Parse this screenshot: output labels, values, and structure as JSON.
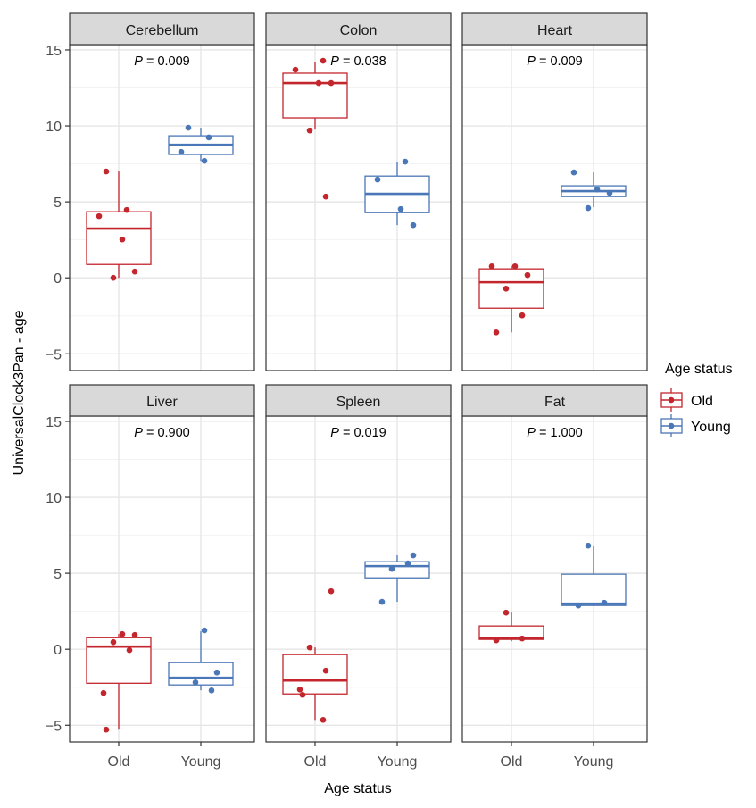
{
  "chart_data": {
    "type": "boxplot",
    "xlabel": "Age status",
    "ylabel": "UniversalClock3Pan - age",
    "ylim": [
      -6.1,
      15.35
    ],
    "y_ticks": [
      -5,
      0,
      5,
      10,
      15
    ],
    "categories": [
      "Old",
      "Young"
    ],
    "grid": true,
    "legend": {
      "title": "Age status",
      "position": "right",
      "entries": [
        "Old",
        "Young"
      ]
    },
    "colors": {
      "Old": "#c4262e",
      "Young": "#4a77b7"
    },
    "p_label": "P",
    "facets": [
      {
        "name": "Cerebellum",
        "p": "0.009",
        "Old": {
          "box": [
            0.0,
            0.88,
            3.24,
            4.35,
            7.0
          ],
          "points": [
            7.0,
            4.47,
            4.06,
            2.53,
            0.41,
            0.0
          ]
        },
        "Young": {
          "box": [
            7.7,
            8.12,
            8.76,
            9.35,
            9.88
          ],
          "points": [
            9.88,
            9.24,
            8.29,
            7.7
          ]
        }
      },
      {
        "name": "Colon",
        "p": "0.038",
        "Old": {
          "box": [
            9.76,
            10.53,
            12.82,
            13.47,
            14.18
          ],
          "points": [
            14.29,
            13.7,
            12.82,
            12.82,
            9.7,
            5.35
          ]
        },
        "Young": {
          "box": [
            3.47,
            4.29,
            5.53,
            6.7,
            7.65
          ],
          "points": [
            7.65,
            6.47,
            4.53,
            3.47
          ]
        }
      },
      {
        "name": "Heart",
        "p": "0.009",
        "Old": {
          "box": [
            -3.59,
            -2.0,
            -0.29,
            0.59,
            0.76
          ],
          "points": [
            0.76,
            0.76,
            0.18,
            -0.71,
            -2.47,
            -3.59
          ]
        },
        "Young": {
          "box": [
            4.65,
            5.35,
            5.71,
            6.06,
            6.94
          ],
          "points": [
            6.94,
            5.82,
            5.59,
            4.59
          ]
        }
      },
      {
        "name": "Liver",
        "p": "0.900",
        "Old": {
          "box": [
            -5.29,
            -2.24,
            0.18,
            0.76,
            1.0
          ],
          "points": [
            1.0,
            0.94,
            0.47,
            -0.06,
            -2.88,
            -5.29
          ]
        },
        "Young": {
          "box": [
            -2.7,
            -2.35,
            -1.88,
            -0.88,
            1.18
          ],
          "points": [
            1.24,
            -1.53,
            -2.18,
            -2.71
          ]
        }
      },
      {
        "name": "Spleen",
        "p": "0.019",
        "Old": {
          "box": [
            -4.65,
            -2.94,
            -2.06,
            -0.35,
            0.12
          ],
          "points": [
            3.82,
            0.12,
            -1.41,
            -2.65,
            -3.0,
            -4.65
          ]
        },
        "Young": {
          "box": [
            3.12,
            4.7,
            5.47,
            5.76,
            6.18
          ],
          "points": [
            6.18,
            5.29,
            5.65,
            3.12
          ]
        }
      },
      {
        "name": "Fat",
        "p": "1.000",
        "Old": {
          "box": [
            0.53,
            0.65,
            0.76,
            1.53,
            2.41
          ],
          "points": [
            2.41,
            0.71,
            0.59
          ]
        },
        "Young": {
          "box": [
            2.88,
            2.88,
            3.0,
            4.94,
            6.82
          ],
          "points": [
            6.82,
            3.06,
            2.88
          ]
        }
      }
    ]
  }
}
